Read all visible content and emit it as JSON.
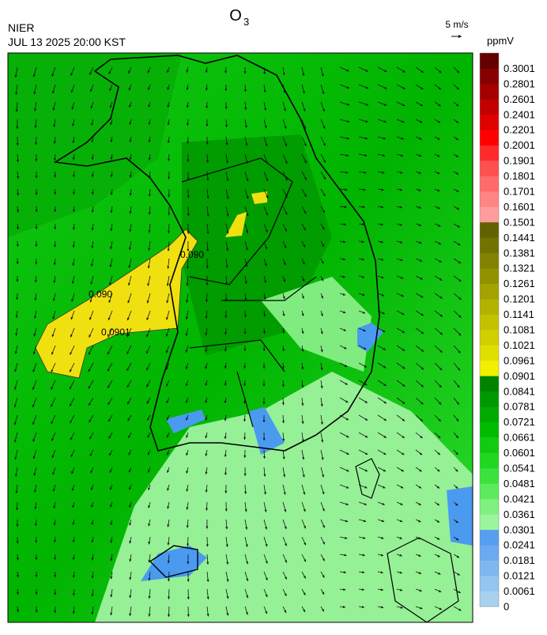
{
  "header": {
    "title": {
      "text": "O",
      "subscript": "3"
    },
    "agency": "NIER",
    "datetime": "JUL 13 2025 20:00 KST",
    "wind_scale": "5 m/s",
    "unit": "ppmV"
  },
  "contour_labels": [
    "0.090",
    "0.090",
    "0.0901"
  ],
  "legend": {
    "items": [
      {
        "label": "0",
        "color": "#a6d2ee"
      },
      {
        "label": "0.0061",
        "color": "#92c6f0"
      },
      {
        "label": "0.0121",
        "color": "#7eb8f0"
      },
      {
        "label": "0.0181",
        "color": "#6aaaf0"
      },
      {
        "label": "0.0241",
        "color": "#559ef0"
      },
      {
        "label": "0.0301",
        "color": "#9cf59c"
      },
      {
        "label": "0.0361",
        "color": "#80f080"
      },
      {
        "label": "0.0421",
        "color": "#5ceb5c"
      },
      {
        "label": "0.0481",
        "color": "#3ce23c"
      },
      {
        "label": "0.0541",
        "color": "#20d820"
      },
      {
        "label": "0.0601",
        "color": "#10cc10"
      },
      {
        "label": "0.0661",
        "color": "#00bc00"
      },
      {
        "label": "0.0721",
        "color": "#00aa00"
      },
      {
        "label": "0.0781",
        "color": "#009800"
      },
      {
        "label": "0.0841",
        "color": "#008400"
      },
      {
        "label": "0.0901",
        "color": "#f0f000"
      },
      {
        "label": "0.0961",
        "color": "#e0e000"
      },
      {
        "label": "0.1021",
        "color": "#d0d000"
      },
      {
        "label": "0.1081",
        "color": "#c2c200"
      },
      {
        "label": "0.1141",
        "color": "#b2b200"
      },
      {
        "label": "0.1201",
        "color": "#a2a200"
      },
      {
        "label": "0.1261",
        "color": "#929200"
      },
      {
        "label": "0.1321",
        "color": "#828200"
      },
      {
        "label": "0.1381",
        "color": "#727200"
      },
      {
        "label": "0.1441",
        "color": "#626200"
      },
      {
        "label": "0.1501",
        "color": "#ff9c9c"
      },
      {
        "label": "0.1601",
        "color": "#ff8484"
      },
      {
        "label": "0.1701",
        "color": "#ff6a6a"
      },
      {
        "label": "0.1801",
        "color": "#ff5050"
      },
      {
        "label": "0.1901",
        "color": "#ff2a2a"
      },
      {
        "label": "0.2001",
        "color": "#ff0000"
      },
      {
        "label": "0.2201",
        "color": "#e00000"
      },
      {
        "label": "0.2401",
        "color": "#c20000"
      },
      {
        "label": "0.2601",
        "color": "#a40000"
      },
      {
        "label": "0.2801",
        "color": "#860000"
      },
      {
        "label": "0.3001",
        "color": "#640000"
      }
    ]
  }
}
